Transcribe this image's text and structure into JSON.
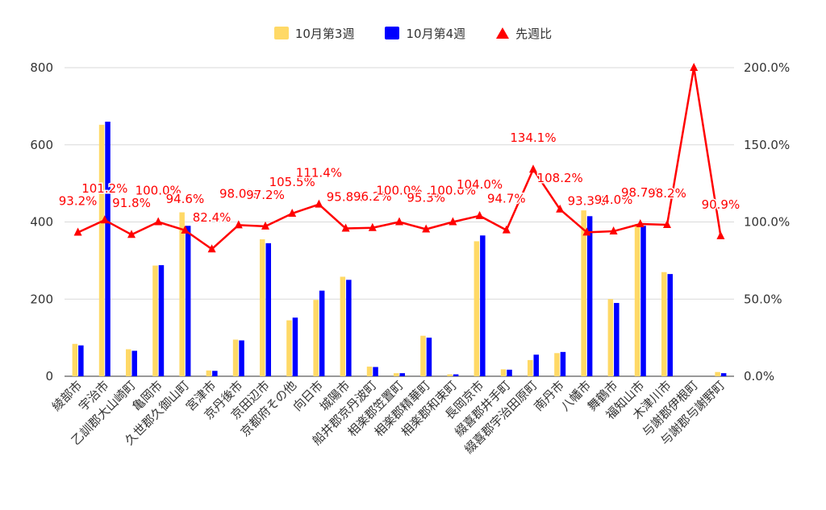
{
  "chart_data": {
    "type": "bar",
    "categories": [
      "綾部市",
      "宇治市",
      "乙訓郡大山崎町",
      "亀岡市",
      "久世郡久御山町",
      "宮津市",
      "京丹後市",
      "京田辺市",
      "京都府その他",
      "向日市",
      "城陽市",
      "船井郡京丹波町",
      "相楽郡笠置町",
      "相楽郡精華町",
      "相楽郡和束町",
      "長岡京市",
      "綴喜郡井手町",
      "綴喜郡宇治田原町",
      "南丹市",
      "八幡市",
      "舞鶴市",
      "福知山市",
      "木津川市",
      "与謝郡伊根町",
      "与謝郡与謝野町"
    ],
    "series": [
      {
        "name": "10月第3週",
        "type": "bar",
        "axis": "left",
        "color": "#ffd966",
        "values": [
          84,
          652,
          70,
          287,
          425,
          15,
          95,
          355,
          145,
          198,
          258,
          25,
          8,
          105,
          5,
          350,
          18,
          42,
          60,
          430,
          200,
          395,
          270,
          0,
          11
        ]
      },
      {
        "name": "10月第4週",
        "type": "bar",
        "axis": "left",
        "color": "#0000ff",
        "values": [
          80,
          660,
          66,
          288,
          390,
          14,
          93,
          345,
          152,
          222,
          250,
          24,
          8,
          100,
          5,
          365,
          17,
          56,
          63,
          415,
          190,
          390,
          265,
          0,
          8
        ]
      },
      {
        "name": "先週比",
        "type": "line",
        "axis": "right",
        "color": "#ff0000",
        "values": [
          93.2,
          101.2,
          91.8,
          100.0,
          94.6,
          82.4,
          98.0,
          97.2,
          105.5,
          111.4,
          95.8,
          96.2,
          100.0,
          95.3,
          100.0,
          104.0,
          94.7,
          134.1,
          108.2,
          93.3,
          94.0,
          98.7,
          98.2,
          200.0,
          90.9
        ]
      }
    ],
    "labels": [
      "93.2%",
      "101.2%",
      "91.8%",
      "100.0%",
      "94.6%",
      "82.4%",
      "98.0%",
      "97.2%",
      "105.5%",
      "111.4%",
      "95.8%",
      "96.2%",
      "100.0%",
      "95.3%",
      "100.0%",
      "104.0%",
      "94.7%",
      "134.1%",
      "108.2%",
      "93.3%",
      "94.0%",
      "98.7%",
      "98.2%",
      "",
      "90.9%"
    ],
    "y_left": {
      "min": 0,
      "max": 800,
      "ticks": [
        0,
        200,
        400,
        600,
        800
      ]
    },
    "y_right": {
      "min": 0,
      "max": 200,
      "ticks": [
        "0.0%",
        "50.0%",
        "100.0%",
        "150.0%",
        "200.0%"
      ]
    },
    "grid": true,
    "legend_position": "top"
  }
}
